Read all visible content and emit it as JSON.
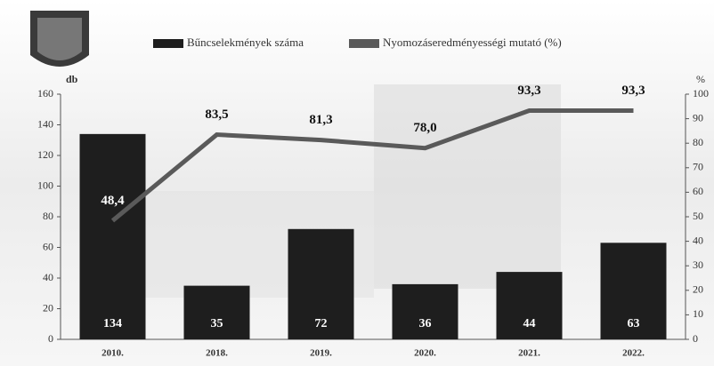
{
  "chart_data": {
    "type": "bar_line",
    "categories": [
      "2010.",
      "2018.",
      "2019.",
      "2020.",
      "2021.",
      "2022."
    ],
    "series": [
      {
        "name": "Bűncselekmények száma",
        "color": "#1e1e1e",
        "type": "bar",
        "values": [
          134,
          35,
          72,
          36,
          44,
          63
        ]
      },
      {
        "name": "Nyomozáseredményességi mutató (%)",
        "color": "#5a5a5a",
        "type": "line",
        "axis": "y2",
        "values": [
          48.4,
          83.5,
          81.3,
          78.0,
          93.3,
          93.3
        ],
        "value_labels": [
          "48,4",
          "83,5",
          "81,3",
          "78,0",
          "93,3",
          "93,3"
        ]
      }
    ],
    "ylabel": "db",
    "y2label": "%",
    "ylim": [
      0,
      160
    ],
    "yticks": [
      0,
      20,
      40,
      60,
      80,
      100,
      120,
      140,
      160
    ],
    "y2lim": [
      0,
      100
    ],
    "y2ticks": [
      0,
      10,
      20,
      30,
      40,
      50,
      60,
      70,
      80,
      90,
      100
    ]
  }
}
